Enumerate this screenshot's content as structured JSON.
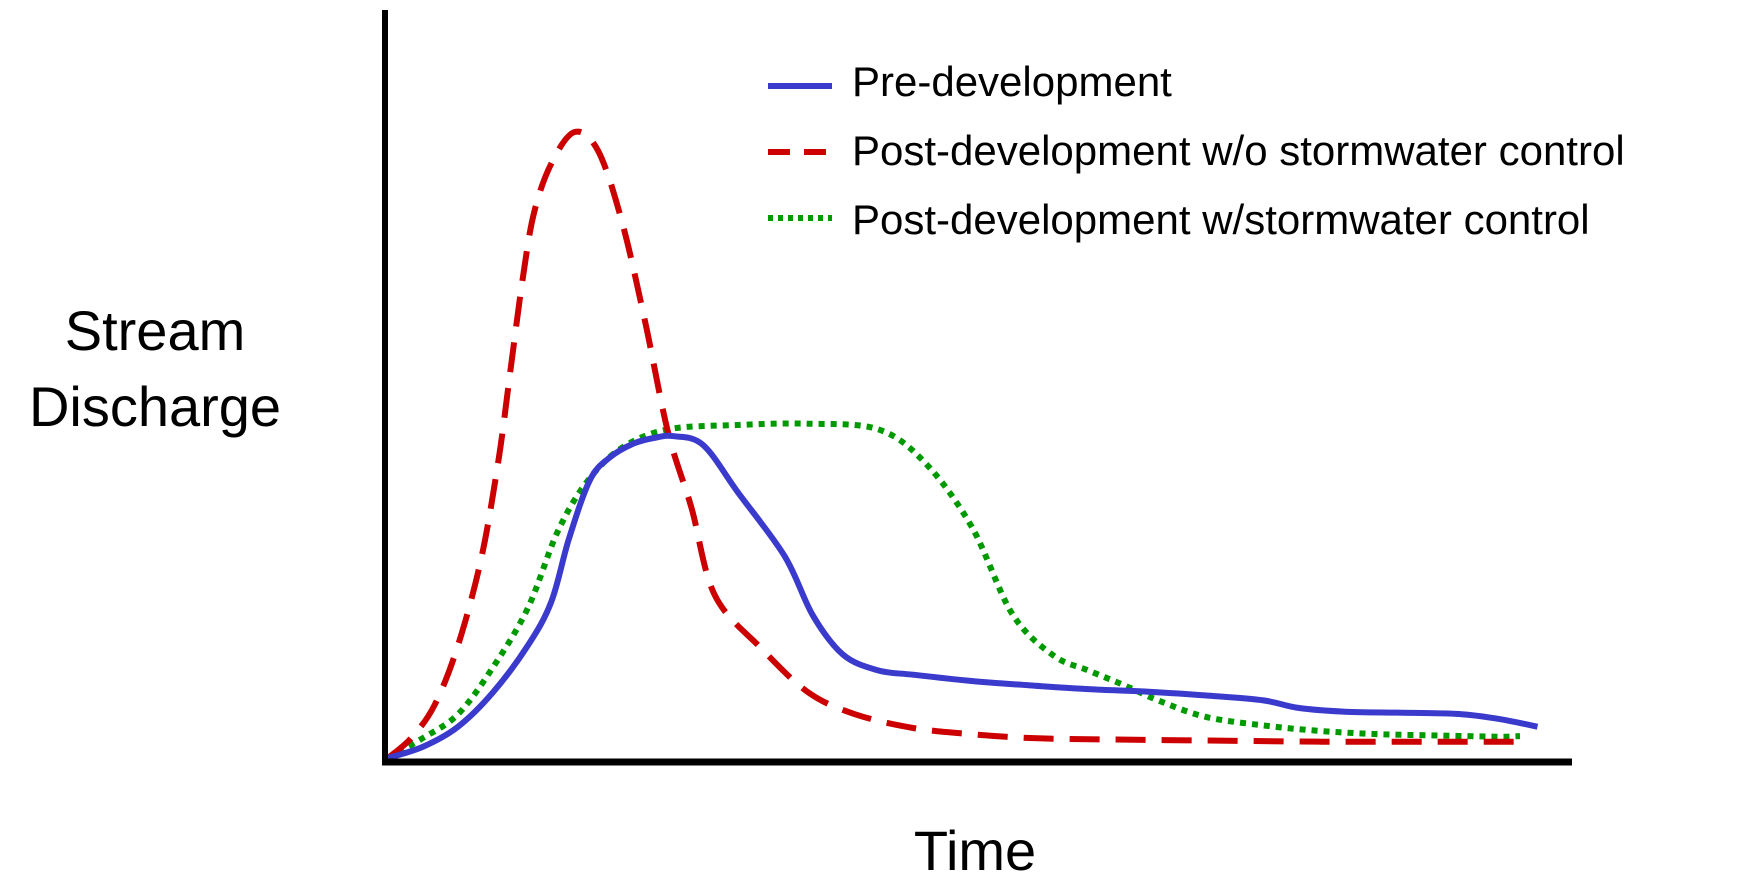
{
  "chart_data": {
    "type": "line",
    "title": "",
    "xlabel": "Time",
    "ylabel": "Stream Discharge",
    "ylabel_lines": [
      "Stream",
      "Discharge"
    ],
    "xlim": [
      0,
      100
    ],
    "ylim": [
      0,
      100
    ],
    "grid": false,
    "ticks": false,
    "legend_position": "top-right",
    "series": [
      {
        "name": "Pre-development",
        "color": "#3a3acc",
        "style": "solid",
        "points": [
          [
            0,
            0
          ],
          [
            3,
            1.8
          ],
          [
            6,
            5
          ],
          [
            9,
            10.5
          ],
          [
            12,
            18
          ],
          [
            14,
            25
          ],
          [
            15.5,
            35
          ],
          [
            17.3,
            44.4
          ],
          [
            19,
            48
          ],
          [
            21,
            50.2
          ],
          [
            23,
            51.2
          ],
          [
            24.5,
            51.4
          ],
          [
            27,
            50
          ],
          [
            30,
            42.4
          ],
          [
            34,
            32.2
          ],
          [
            36.4,
            22.8
          ],
          [
            39,
            16.5
          ],
          [
            42,
            14
          ],
          [
            45,
            13.3
          ],
          [
            50,
            12.3
          ],
          [
            55,
            11.6
          ],
          [
            60,
            11
          ],
          [
            65,
            10.6
          ],
          [
            70,
            10
          ],
          [
            75,
            9.2
          ],
          [
            78,
            8
          ],
          [
            82,
            7.4
          ],
          [
            88,
            7.2
          ],
          [
            92,
            7
          ],
          [
            95,
            6.3
          ],
          [
            98.5,
            5
          ]
        ]
      },
      {
        "name": "Post-development w/o stormwater control",
        "color": "#cc0000",
        "style": "dashed",
        "points": [
          [
            0,
            0
          ],
          [
            2,
            3.2
          ],
          [
            4,
            8.5
          ],
          [
            6,
            18
          ],
          [
            8,
            32
          ],
          [
            9.5,
            48
          ],
          [
            10.5,
            62
          ],
          [
            11.5,
            76
          ],
          [
            12.5,
            87
          ],
          [
            14,
            95
          ],
          [
            16,
            100
          ],
          [
            18,
            97
          ],
          [
            20,
            86
          ],
          [
            22,
            70
          ],
          [
            24,
            52
          ],
          [
            26,
            40
          ],
          [
            28,
            26
          ],
          [
            32,
            17.5
          ],
          [
            36,
            10.5
          ],
          [
            40,
            7
          ],
          [
            45,
            4.8
          ],
          [
            50,
            3.8
          ],
          [
            55,
            3.2
          ],
          [
            60,
            3
          ],
          [
            70,
            2.8
          ],
          [
            80,
            2.6
          ],
          [
            90,
            2.6
          ],
          [
            97,
            2.6
          ]
        ]
      },
      {
        "name": "Post-development w/stormwater control",
        "color": "#009900",
        "style": "dotted",
        "points": [
          [
            0,
            0
          ],
          [
            3,
            3.2
          ],
          [
            6,
            7
          ],
          [
            9,
            14.5
          ],
          [
            12,
            24
          ],
          [
            14.5,
            36
          ],
          [
            17,
            44
          ],
          [
            20,
            49.5
          ],
          [
            24,
            52.5
          ],
          [
            30,
            53.2
          ],
          [
            36,
            53.4
          ],
          [
            42,
            52.5
          ],
          [
            46,
            47.2
          ],
          [
            50,
            37
          ],
          [
            53.5,
            23
          ],
          [
            57,
            16.4
          ],
          [
            60,
            14
          ],
          [
            63,
            11.7
          ],
          [
            66,
            9.2
          ],
          [
            70,
            6.6
          ],
          [
            75,
            5.2
          ],
          [
            80,
            4.3
          ],
          [
            85,
            3.8
          ],
          [
            90,
            3.6
          ],
          [
            95,
            3.4
          ],
          [
            97,
            3.5
          ]
        ]
      }
    ]
  }
}
